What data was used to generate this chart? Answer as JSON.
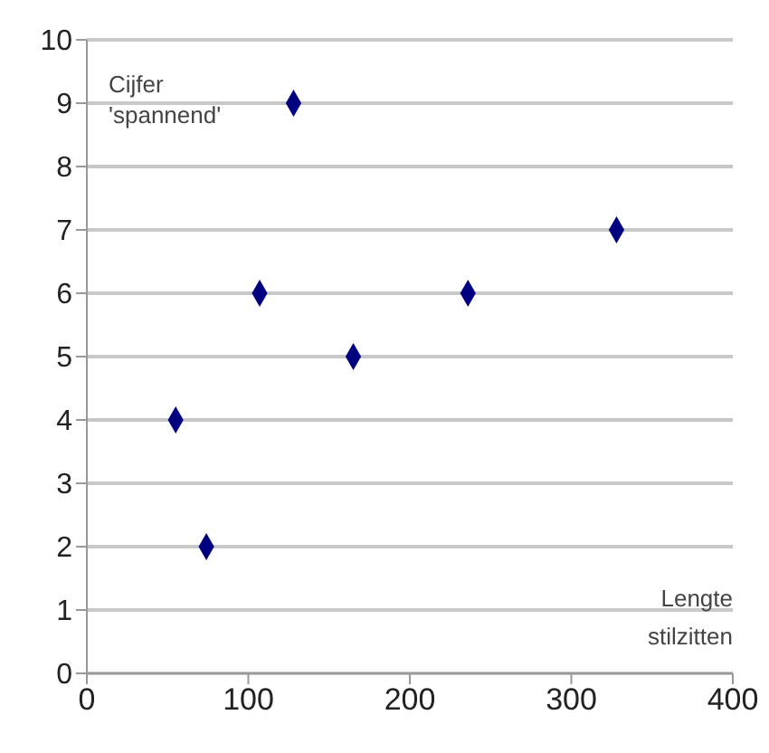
{
  "chart_data": {
    "type": "scatter",
    "xlabel": "Lengte stilzitten",
    "ylabel": "Cijfer 'spannend'",
    "x": [
      55,
      74,
      107,
      128,
      165,
      236,
      328
    ],
    "values": [
      4,
      2,
      6,
      9,
      5,
      6,
      7
    ],
    "color": "#000080",
    "marker": "diamond",
    "xlim": [
      0,
      400
    ],
    "xticks": [
      0,
      100,
      200,
      300,
      400
    ],
    "ylim": [
      0,
      10
    ],
    "yticks": [
      0,
      1,
      2,
      3,
      4,
      5,
      6,
      7,
      8,
      9,
      10
    ],
    "grid": "y"
  }
}
